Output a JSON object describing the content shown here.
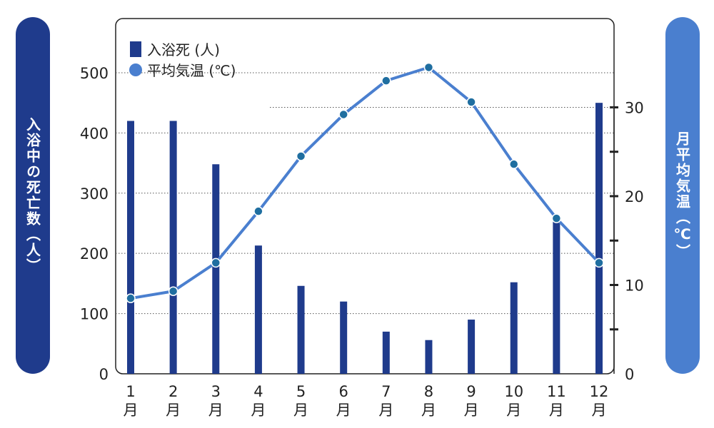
{
  "chart_data": {
    "type": "bar",
    "categories": [
      "1\n月",
      "2\n月",
      "3\n月",
      "4\n月",
      "5\n月",
      "6\n月",
      "7\n月",
      "8\n月",
      "9\n月",
      "10\n月",
      "11\n月",
      "12\n月"
    ],
    "category_numbers": [
      "1",
      "2",
      "3",
      "4",
      "5",
      "6",
      "7",
      "8",
      "9",
      "10",
      "11",
      "12"
    ],
    "category_unit": "月",
    "series": [
      {
        "name": "入浴死 (人)",
        "type": "bar",
        "axis": "left",
        "color": "#1f3b8c",
        "values": [
          420,
          420,
          348,
          213,
          146,
          120,
          70,
          56,
          90,
          152,
          262,
          450
        ]
      },
      {
        "name": "平均気温 (℃)",
        "type": "line",
        "axis": "right",
        "color": "#4a7fcf",
        "values": [
          8.5,
          9.3,
          12.5,
          18.3,
          24.5,
          29.2,
          33.0,
          34.5,
          30.6,
          23.6,
          17.5,
          12.5
        ]
      }
    ],
    "y_left": {
      "label": "入浴中の死亡数（人）",
      "ticks": [
        0,
        100,
        200,
        300,
        400,
        500
      ],
      "ylim": [
        0,
        590
      ]
    },
    "y_right": {
      "label": "月平均気温（℃）",
      "ticks": [
        0,
        10,
        20,
        30
      ],
      "ylim": [
        0,
        40
      ]
    },
    "legend": {
      "position": "top-left",
      "entries": [
        "入浴死 (人)",
        "平均気温 (℃)"
      ]
    },
    "grid": "horizontal-dotted"
  },
  "labels": {
    "left_axis_title": "入浴中の死亡数（人）",
    "right_axis_title": "月平均気温（℃）",
    "legend_bar": "入浴死 (人)",
    "legend_line": "平均気温 (℃)"
  }
}
